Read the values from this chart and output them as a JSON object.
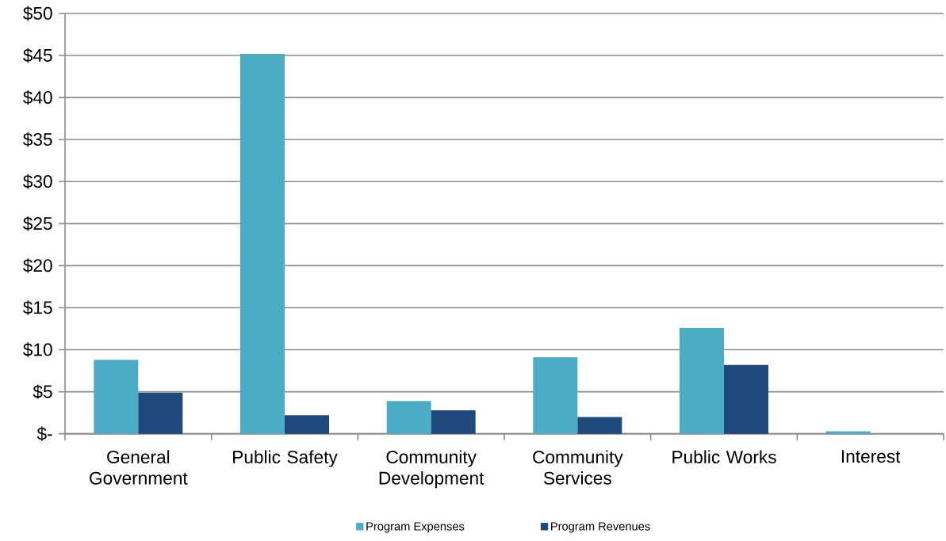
{
  "chart_data": {
    "type": "bar",
    "categories": [
      "General Government",
      "Public Safety",
      "Community Development",
      "Community Services",
      "Public Works",
      "Interest"
    ],
    "series": [
      {
        "name": "Program Expenses",
        "color": "#4bacc6",
        "values": [
          8.8,
          45.2,
          3.9,
          9.1,
          12.6,
          0.3
        ]
      },
      {
        "name": "Program Revenues",
        "color": "#1f497d",
        "values": [
          4.9,
          2.2,
          2.8,
          2.0,
          8.2,
          0
        ]
      }
    ],
    "ylim": [
      0,
      50
    ],
    "yticks": [
      {
        "value": 0,
        "label": "$-"
      },
      {
        "value": 5,
        "label": "$5"
      },
      {
        "value": 10,
        "label": "$10"
      },
      {
        "value": 15,
        "label": "$15"
      },
      {
        "value": 20,
        "label": "$20"
      },
      {
        "value": 25,
        "label": "$25"
      },
      {
        "value": 30,
        "label": "$30"
      },
      {
        "value": 35,
        "label": "$35"
      },
      {
        "value": 40,
        "label": "$40"
      },
      {
        "value": 45,
        "label": "$45"
      },
      {
        "value": 50,
        "label": "$50"
      }
    ],
    "grid": "y",
    "legend": "bottom"
  }
}
